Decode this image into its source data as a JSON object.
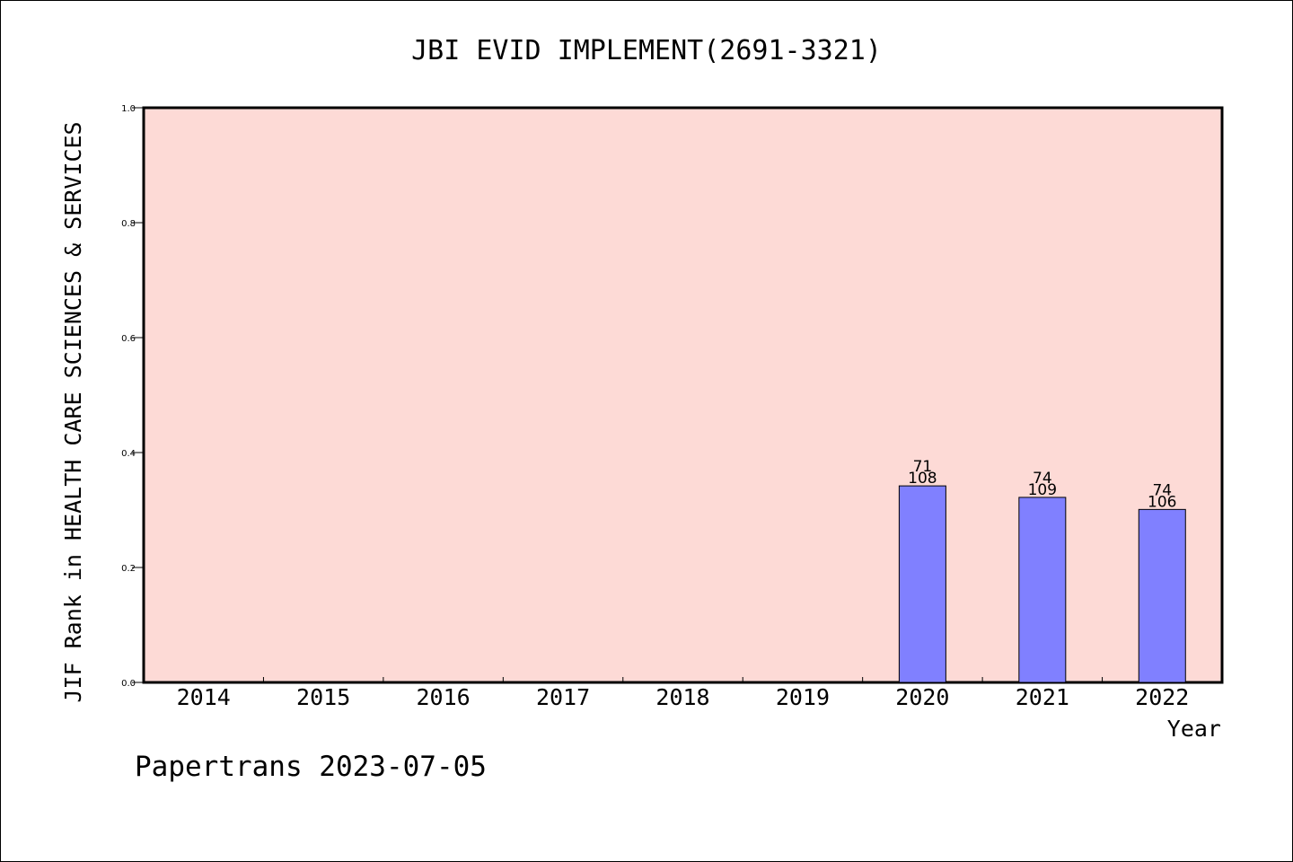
{
  "chart_data": {
    "type": "bar",
    "title": "JBI EVID IMPLEMENT(2691-3321)",
    "xlabel": "Year",
    "ylabel": "JIF Rank in HEALTH CARE SCIENCES & SERVICES",
    "categories": [
      "2014",
      "2015",
      "2016",
      "2017",
      "2018",
      "2019",
      "2020",
      "2021",
      "2022"
    ],
    "values": [
      null,
      null,
      null,
      null,
      null,
      null,
      0.342,
      0.322,
      0.301
    ],
    "bar_labels": [
      null,
      null,
      null,
      null,
      null,
      null,
      {
        "rank": "71",
        "total": "108"
      },
      {
        "rank": "74",
        "total": "109"
      },
      {
        "rank": "74",
        "total": "106"
      }
    ],
    "ylim": [
      0,
      1.0
    ],
    "yticks": [
      "0.0",
      "0.2",
      "0.4",
      "0.6",
      "0.8",
      "1.0"
    ],
    "grid": false,
    "colors": {
      "plot_background": "#fddad6",
      "bar_fill": "#8080ff",
      "bar_stroke": "#000000"
    }
  },
  "footer": "Papertrans 2023-07-05"
}
